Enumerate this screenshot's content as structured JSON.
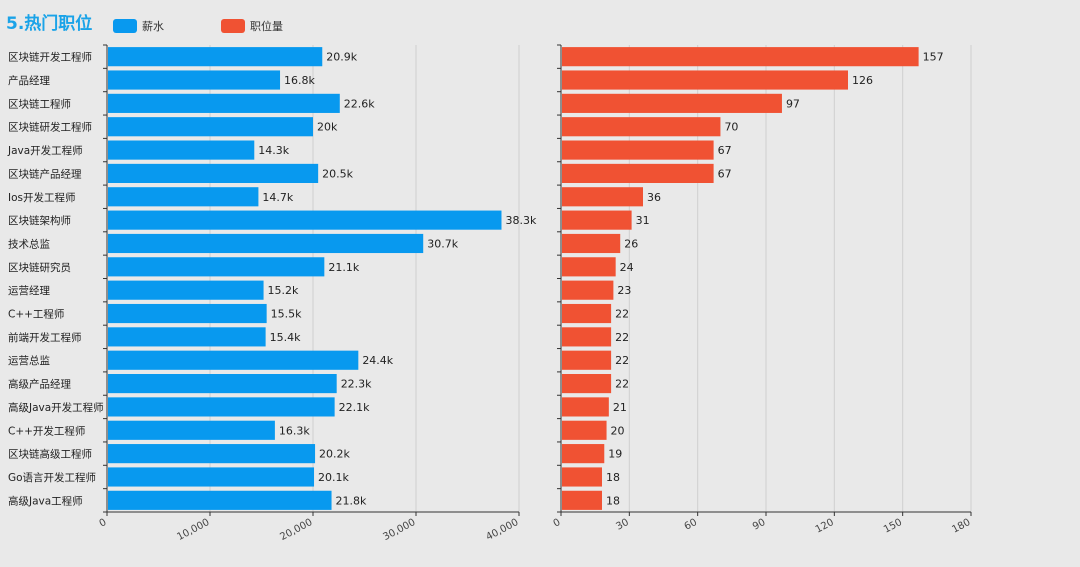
{
  "title": "5.热门职位",
  "colors": {
    "salary": "#0899ef",
    "count": "#f05233",
    "grid": "#cfcfcf",
    "axis": "#333333"
  },
  "legend": [
    {
      "label": "薪水",
      "color": "#0899ef"
    },
    {
      "label": "职位量",
      "color": "#f05233"
    }
  ],
  "chart_data": [
    {
      "type": "bar",
      "orientation": "horizontal",
      "categories": [
        "区块链开发工程师",
        "产品经理",
        "区块链工程师",
        "区块链研发工程师",
        "Java开发工程师",
        "区块链产品经理",
        "Ios开发工程师",
        "区块链架构师",
        "技术总监",
        "区块链研究员",
        "运营经理",
        "C++工程师",
        "前端开发工程师",
        "运营总监",
        "高级产品经理",
        "高级Java开发工程师",
        "C++开发工程师",
        "区块链高级工程师",
        "Go语言开发工程师",
        "高级Java工程师"
      ],
      "series": [
        {
          "name": "薪水",
          "values": [
            20900,
            16800,
            22600,
            20000,
            14300,
            20500,
            14700,
            38300,
            30700,
            21100,
            15200,
            15500,
            15400,
            24400,
            22300,
            22100,
            16300,
            20200,
            20100,
            21800
          ],
          "labels": [
            "20.9k",
            "16.8k",
            "22.6k",
            "20k",
            "14.3k",
            "20.5k",
            "14.7k",
            "38.3k",
            "30.7k",
            "21.1k",
            "15.2k",
            "15.5k",
            "15.4k",
            "24.4k",
            "22.3k",
            "22.1k",
            "16.3k",
            "20.2k",
            "20.1k",
            "21.8k"
          ]
        }
      ],
      "xlim": [
        0,
        40000
      ],
      "xticks": [
        "0",
        "10,000",
        "20,000",
        "30,000",
        "40,000"
      ],
      "grid": true
    },
    {
      "type": "bar",
      "orientation": "horizontal",
      "categories": [
        "区块链开发工程师",
        "产品经理",
        "区块链工程师",
        "区块链研发工程师",
        "Java开发工程师",
        "区块链产品经理",
        "Ios开发工程师",
        "区块链架构师",
        "技术总监",
        "区块链研究员",
        "运营经理",
        "C++工程师",
        "前端开发工程师",
        "运营总监",
        "高级产品经理",
        "高级Java开发工程师",
        "C++开发工程师",
        "区块链高级工程师",
        "Go语言开发工程师",
        "高级Java工程师"
      ],
      "series": [
        {
          "name": "职位量",
          "values": [
            157,
            126,
            97,
            70,
            67,
            67,
            36,
            31,
            26,
            24,
            23,
            22,
            22,
            22,
            22,
            21,
            20,
            19,
            18,
            18
          ],
          "labels": [
            "157",
            "126",
            "97",
            "70",
            "67",
            "67",
            "36",
            "31",
            "26",
            "24",
            "23",
            "22",
            "22",
            "22",
            "22",
            "21",
            "20",
            "19",
            "18",
            "18"
          ]
        }
      ],
      "xlim": [
        0,
        180
      ],
      "xticks": [
        "0",
        "30",
        "60",
        "90",
        "120",
        "150",
        "180"
      ],
      "grid": true
    }
  ]
}
